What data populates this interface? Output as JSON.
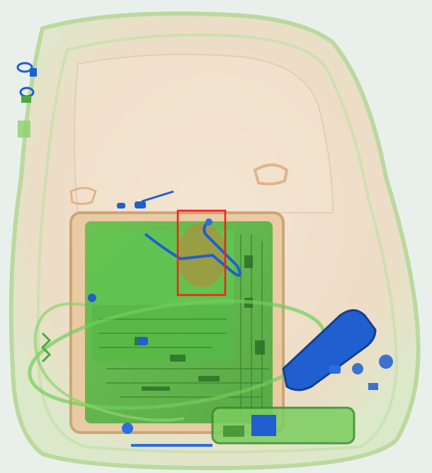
{
  "image": {
    "kind": "x-ray baggage scan",
    "colors": {
      "background": "#e9f0ec",
      "organic": "#f0c8a0",
      "inorganic": "#6fcf5a",
      "metal": "#1f5fd0",
      "highlight": "#ff1a1a"
    },
    "detection": {
      "label": "suspicious-object"
    }
  }
}
